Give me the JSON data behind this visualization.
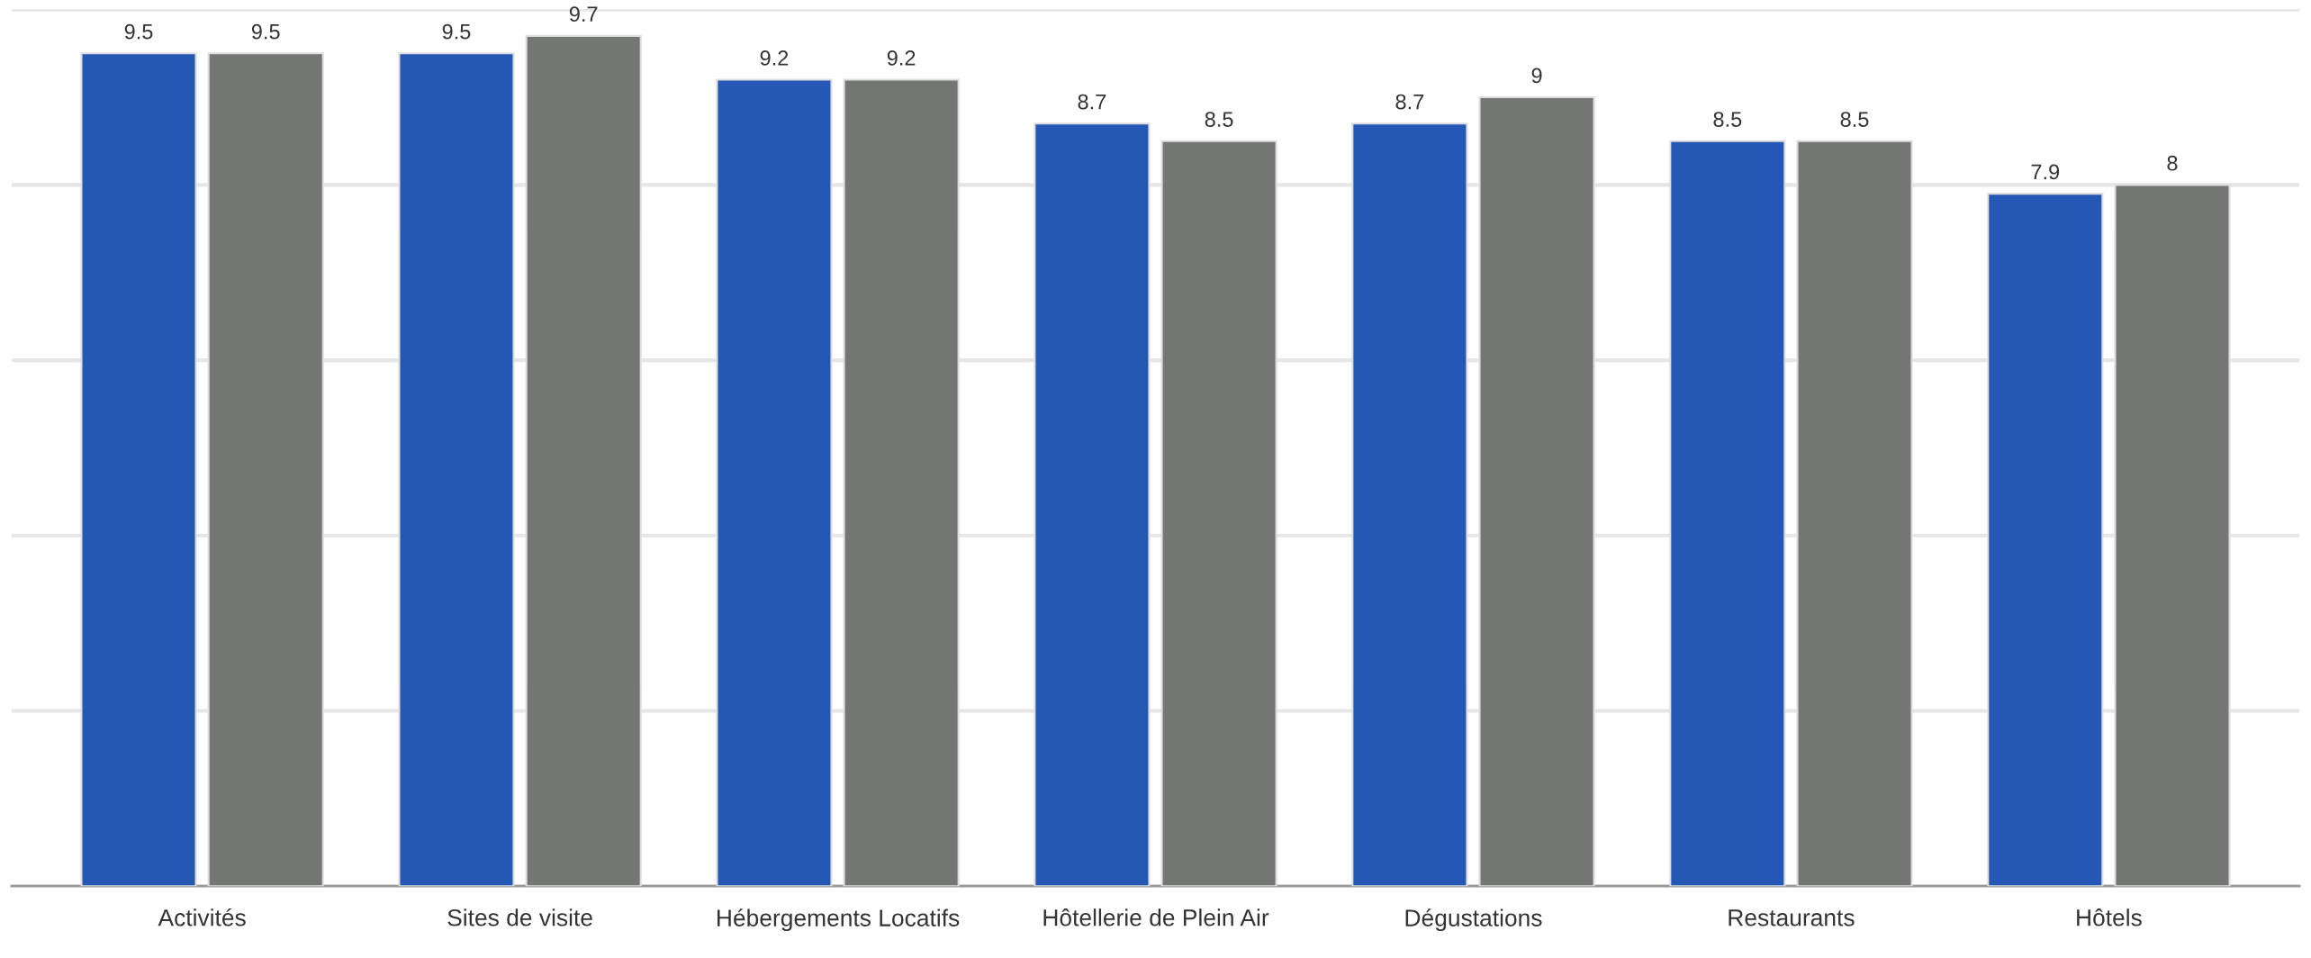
{
  "chart_data": {
    "type": "bar",
    "categories": [
      "Activités",
      "Sites de visite",
      "Hébergements Locatifs",
      "Hôtellerie de Plein Air",
      "Dégustations",
      "Restaurants",
      "Hôtels"
    ],
    "series": [
      {
        "color": "#2557b5",
        "values": [
          9.5,
          9.5,
          9.2,
          8.7,
          8.7,
          8.5,
          7.9
        ]
      },
      {
        "color": "#737673",
        "values": [
          9.5,
          9.7,
          9.2,
          8.5,
          9,
          8.5,
          8
        ]
      }
    ],
    "ylim": [
      0,
      10
    ],
    "yticks": [
      {
        "value": 0,
        "label": null
      },
      {
        "value": 2,
        "label": null
      },
      {
        "value": 4,
        "label": null
      },
      {
        "value": 6,
        "label": null
      },
      {
        "value": 8,
        "label": null
      },
      {
        "value": 10,
        "label": null
      }
    ],
    "tick_labels": "x",
    "grid": "y",
    "data_labels": true
  }
}
